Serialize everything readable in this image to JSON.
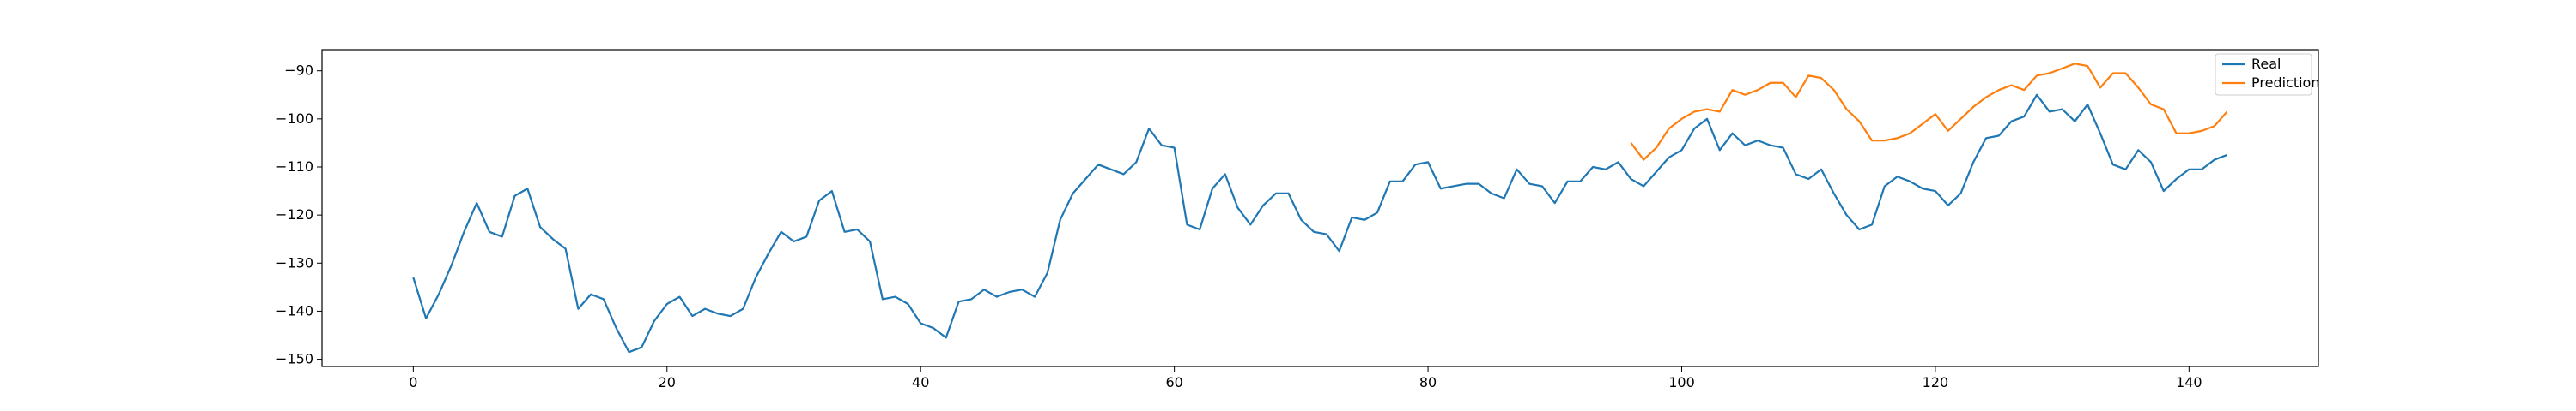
{
  "chart_data": {
    "type": "line",
    "title": "",
    "xlabel": "",
    "ylabel": "",
    "xlim": [
      -7.2,
      150.2
    ],
    "ylim": [
      -151.5,
      -85.6
    ],
    "xticks": [
      0,
      20,
      40,
      60,
      80,
      100,
      120,
      140
    ],
    "yticks": [
      -150,
      -140,
      -130,
      -120,
      -110,
      -100,
      -90
    ],
    "grid": false,
    "legend_position": "top-right",
    "series": [
      {
        "name": "Real",
        "color": "#1f77b4",
        "x_start": 0,
        "values": [
          -133,
          -141.5,
          -136.5,
          -130.5,
          -123.5,
          -117.5,
          -123.5,
          -124.5,
          -116,
          -114.5,
          -122.5,
          -125,
          -127,
          -139.5,
          -136.5,
          -137.5,
          -143.5,
          -148.5,
          -147.5,
          -142,
          -138.5,
          -137,
          -141,
          -139.5,
          -140.5,
          -141,
          -139.5,
          -133,
          -128,
          -123.5,
          -125.5,
          -124.5,
          -117,
          -115,
          -123.5,
          -123,
          -125.5,
          -137.5,
          -137,
          -138.5,
          -142.5,
          -143.5,
          -145.5,
          -138,
          -137.5,
          -135.5,
          -137,
          -136,
          -135.5,
          -137,
          -132,
          -121,
          -115.5,
          -112.5,
          -109.5,
          -110.5,
          -111.5,
          -109,
          -102,
          -105.5,
          -106,
          -122,
          -123,
          -114.5,
          -111.5,
          -118.5,
          -122,
          -118,
          -115.5,
          -115.5,
          -121,
          -123.5,
          -124,
          -127.5,
          -120.5,
          -121,
          -119.5,
          -113,
          -113,
          -109.5,
          -109,
          -114.5,
          -114,
          -113.5,
          -113.5,
          -115.5,
          -116.5,
          -110.5,
          -113.5,
          -114,
          -117.5,
          -113,
          -113,
          -110,
          -110.5,
          -109,
          -112.5,
          -114,
          -111,
          -108,
          -106.5,
          -102,
          -100,
          -106.5,
          -103,
          -105.5,
          -104.5,
          -105.5,
          -106,
          -111.5,
          -112.5,
          -110.5,
          -115.5,
          -120,
          -123,
          -122,
          -114,
          -112,
          -113,
          -114.5,
          -115,
          -118,
          -115.5,
          -109,
          -104,
          -103.5,
          -100.5,
          -99.5,
          -95,
          -98.5,
          -98,
          -100.5,
          -97,
          -103,
          -109.5,
          -110.5,
          -106.5,
          -109,
          -115,
          -112.5,
          -110.5,
          -110.5,
          -108.5,
          -107.5
        ]
      },
      {
        "name": "Prediction",
        "color": "#ff7f0e",
        "x_start": 96,
        "values": [
          -105,
          -108.5,
          -106,
          -102,
          -100,
          -98.5,
          -98,
          -98.5,
          -94,
          -95,
          -94,
          -92.5,
          -92.5,
          -95.5,
          -91,
          -91.5,
          -94,
          -98,
          -100.5,
          -104.5,
          -104.5,
          -104,
          -103,
          -101,
          -99,
          -102.5,
          -100,
          -97.5,
          -95.5,
          -94,
          -93,
          -94,
          -91,
          -90.5,
          -89.5,
          -88.5,
          -89,
          -93.5,
          -90.5,
          -90.5,
          -93.5,
          -97,
          -98,
          -103,
          -103,
          -102.5,
          -101.5,
          -98.5
        ]
      }
    ]
  }
}
